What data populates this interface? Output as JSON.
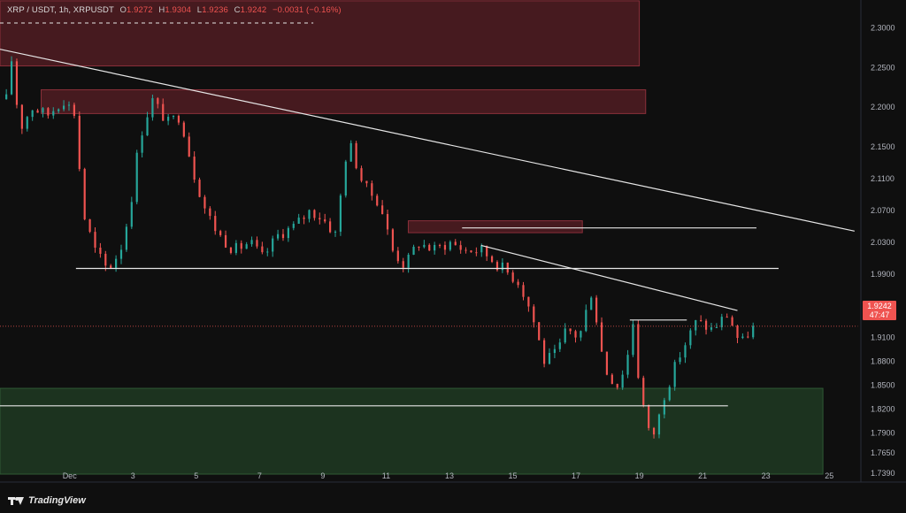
{
  "header": {
    "symbol": "XRP / USDT, 1h, XRPUSDT",
    "open_label": "O",
    "open": "1.9272",
    "high_label": "H",
    "high": "1.9304",
    "low_label": "L",
    "low": "1.9236",
    "close_label": "C",
    "close": "1.9242",
    "change": "−0.0031 (−0.16%)"
  },
  "price_tag": {
    "price": "1.9242",
    "countdown": "47:47"
  },
  "brand": {
    "name": "TradingView",
    "icon": "tradingview-logo-icon"
  },
  "colors": {
    "background": "#0f0f0f",
    "up": "#26a69a",
    "down": "#ef5350",
    "supply_zone": "#5a1f26",
    "demand_zone": "#1e3a22",
    "line": "#e6e6e6",
    "axis_text": "#b2b5be"
  },
  "chart_data": {
    "type": "candlestick",
    "title": "XRP / USDT, 1h, XRPUSDT",
    "x_axis": {
      "ticks": [
        "Dec",
        "3",
        "5",
        "7",
        "9",
        "11",
        "13",
        "15",
        "17",
        "19",
        "21",
        "23",
        "25"
      ],
      "tick_day": [
        1,
        3,
        5,
        7,
        9,
        11,
        13,
        15,
        17,
        19,
        21,
        23,
        25
      ],
      "range_day": [
        -1.2,
        26.0
      ]
    },
    "y_axis": {
      "ticks": [
        "2.3000",
        "2.2500",
        "2.2000",
        "2.1500",
        "2.1100",
        "2.0700",
        "2.0300",
        "1.9900",
        "1.9500",
        "1.9100",
        "1.8800",
        "1.8500",
        "1.8200",
        "1.7900",
        "1.7650",
        "1.7390"
      ],
      "tick_values": [
        2.3,
        2.25,
        2.2,
        2.15,
        2.11,
        2.07,
        2.03,
        1.99,
        1.95,
        1.91,
        1.88,
        1.85,
        1.82,
        1.79,
        1.765,
        1.739
      ],
      "range": [
        1.728,
        2.335
      ]
    },
    "price_path": [
      [
        -1.0,
        2.21
      ],
      [
        -0.8,
        2.27
      ],
      [
        -0.6,
        2.17
      ],
      [
        -0.2,
        2.2
      ],
      [
        0.3,
        2.19
      ],
      [
        0.8,
        2.21
      ],
      [
        1.2,
        2.19
      ],
      [
        1.4,
        2.07
      ],
      [
        1.8,
        2.02
      ],
      [
        2.2,
        1.995
      ],
      [
        2.6,
        2.02
      ],
      [
        2.9,
        2.07
      ],
      [
        3.2,
        2.16
      ],
      [
        3.6,
        2.21
      ],
      [
        4.1,
        2.18
      ],
      [
        4.5,
        2.19
      ],
      [
        4.9,
        2.12
      ],
      [
        5.3,
        2.07
      ],
      [
        5.7,
        2.04
      ],
      [
        6.2,
        2.02
      ],
      [
        6.7,
        2.03
      ],
      [
        7.1,
        2.01
      ],
      [
        7.6,
        2.04
      ],
      [
        8.1,
        2.05
      ],
      [
        8.6,
        2.07
      ],
      [
        9.0,
        2.06
      ],
      [
        9.4,
        2.04
      ],
      [
        9.8,
        2.16
      ],
      [
        10.3,
        2.1
      ],
      [
        10.8,
        2.08
      ],
      [
        11.2,
        2.02
      ],
      [
        11.6,
        2.0
      ],
      [
        12.0,
        2.03
      ],
      [
        12.5,
        2.02
      ],
      [
        13.0,
        2.03
      ],
      [
        13.5,
        2.02
      ],
      [
        14.0,
        2.02
      ],
      [
        14.6,
        2.0
      ],
      [
        15.2,
        1.98
      ],
      [
        15.6,
        1.94
      ],
      [
        16.0,
        1.88
      ],
      [
        16.4,
        1.89
      ],
      [
        16.7,
        1.92
      ],
      [
        17.1,
        1.91
      ],
      [
        17.5,
        1.97
      ],
      [
        17.9,
        1.87
      ],
      [
        18.3,
        1.85
      ],
      [
        18.6,
        1.88
      ],
      [
        18.8,
        1.93
      ],
      [
        19.0,
        1.85
      ],
      [
        19.3,
        1.79
      ],
      [
        19.5,
        1.79
      ],
      [
        19.8,
        1.84
      ],
      [
        20.3,
        1.89
      ],
      [
        20.8,
        1.93
      ],
      [
        21.3,
        1.92
      ],
      [
        21.8,
        1.94
      ],
      [
        22.0,
        1.92
      ],
      [
        22.2,
        1.9
      ],
      [
        22.5,
        1.92
      ],
      [
        22.7,
        1.924
      ]
    ],
    "zones": [
      {
        "kind": "supply",
        "x1": -1.2,
        "x2": 19.0,
        "y1": 2.252,
        "y2": 2.334
      },
      {
        "kind": "supply",
        "x1": 0.1,
        "x2": 19.2,
        "y1": 2.192,
        "y2": 2.222
      },
      {
        "kind": "supply",
        "x1": 11.7,
        "x2": 17.2,
        "y1": 2.042,
        "y2": 2.057
      },
      {
        "kind": "demand",
        "x1": -1.2,
        "x2": 24.8,
        "y1": 1.738,
        "y2": 1.846
      }
    ],
    "lines": [
      {
        "kind": "trendline",
        "x1": -1.2,
        "y1": 2.273,
        "x2": 25.8,
        "y2": 2.044
      },
      {
        "kind": "trendline",
        "x1": 14.0,
        "y1": 2.026,
        "x2": 22.1,
        "y2": 1.944
      },
      {
        "kind": "level",
        "x1": 1.2,
        "x2": 23.4,
        "y": 1.997
      },
      {
        "kind": "level",
        "x1": -1.2,
        "x2": 21.8,
        "y": 1.824
      },
      {
        "kind": "level",
        "x1": 13.4,
        "x2": 22.7,
        "y": 2.048
      },
      {
        "kind": "level",
        "x1": 18.7,
        "x2": 20.5,
        "y": 1.932
      },
      {
        "kind": "dashed",
        "x1": -1.2,
        "x2": 8.7,
        "y": 2.306
      },
      {
        "kind": "current-price",
        "x1": -1.2,
        "x2": 25.9,
        "y": 1.9242
      }
    ]
  }
}
